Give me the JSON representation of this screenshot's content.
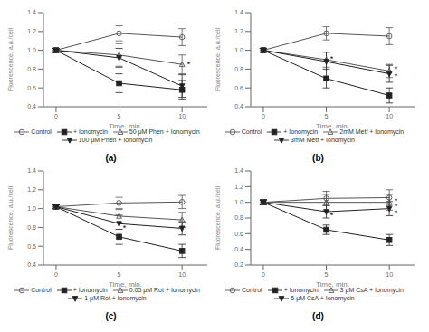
{
  "chart_data": [
    {
      "type": "line",
      "title": "(a)",
      "x_label": "Time, min.",
      "y_label": "Fluorescence, a.u./cell",
      "x": [
        0,
        5,
        10
      ],
      "xlim": [
        -1,
        12
      ],
      "xticks": [
        0,
        5,
        10
      ],
      "ylim": [
        0.4,
        1.4
      ],
      "yticks": [
        0.4,
        0.6,
        0.8,
        {
          "value": 1.0,
          "label": "1.0"
        },
        1.2,
        1.4
      ],
      "grid": false,
      "series": [
        {
          "name": "Control",
          "color": "#555555",
          "values": [
            1.0,
            1.18,
            1.14
          ],
          "yerr": [
            0.02,
            0.08,
            0.09
          ],
          "marker": "circle-open",
          "line_style": "solid"
        },
        {
          "name": "+ Ionomycin",
          "color": "#222222",
          "values": [
            1.0,
            0.65,
            0.58
          ],
          "yerr": [
            0.02,
            0.1,
            0.1
          ],
          "marker": "square",
          "line_style": "solid"
        },
        {
          "name": "50 μM Phen + Ionomycin",
          "color": "#555555",
          "values": [
            1.0,
            0.95,
            0.85
          ],
          "yerr": [
            0.02,
            0.12,
            0.1
          ],
          "marker": "triangle-up-open",
          "line_style": "solid"
        },
        {
          "name": "100 μM Phen + Ionomycin",
          "color": "#222222",
          "values": [
            1.0,
            0.92,
            0.62
          ],
          "yerr": [
            0.02,
            0.1,
            0.12
          ],
          "marker": "triangle-down",
          "line_style": "solid"
        }
      ],
      "annotations": [
        {
          "x": 10.4,
          "y": 0.85,
          "text": "*"
        }
      ]
    },
    {
      "type": "line",
      "title": "(b)",
      "x_label": "Time, min.",
      "y_label": "Fluorescence, a.u./cell",
      "x": [
        0,
        5,
        10
      ],
      "xlim": [
        -1,
        12
      ],
      "xticks": [
        0,
        5,
        10
      ],
      "ylim": [
        0.4,
        1.4
      ],
      "yticks": [
        0.4,
        0.6,
        0.8,
        {
          "value": 1.0,
          "label": "1.0"
        },
        1.2,
        1.4
      ],
      "grid": false,
      "series": [
        {
          "name": "Control",
          "color": "#555555",
          "values": [
            1.0,
            1.18,
            1.15
          ],
          "yerr": [
            0.02,
            0.07,
            0.09
          ],
          "marker": "circle-open",
          "line_style": "solid"
        },
        {
          "name": "+ Ionomycin",
          "color": "#222222",
          "values": [
            1.0,
            0.7,
            0.52
          ],
          "yerr": [
            0.02,
            0.1,
            0.08
          ],
          "marker": "square",
          "line_style": "solid"
        },
        {
          "name": "2mM Metf + Ionomycin",
          "color": "#555555",
          "values": [
            1.0,
            0.9,
            0.78
          ],
          "yerr": [
            0.02,
            0.08,
            0.07
          ],
          "marker": "triangle-up-open",
          "line_style": "solid"
        },
        {
          "name": "3mM Metf + Ionomycin",
          "color": "#222222",
          "values": [
            1.0,
            0.88,
            0.75
          ],
          "yerr": [
            0.02,
            0.1,
            0.09
          ],
          "marker": "triangle-down",
          "line_style": "solid"
        }
      ],
      "annotations": [
        {
          "x": 5.3,
          "y": 0.91,
          "text": "*"
        },
        {
          "x": 10.4,
          "y": 0.8,
          "text": "*"
        },
        {
          "x": 10.4,
          "y": 0.73,
          "text": "*"
        }
      ]
    },
    {
      "type": "line",
      "title": "(c)",
      "x_label": "Time, min.",
      "y_label": "Fluorescence, a.u./cell",
      "x": [
        0,
        5,
        10
      ],
      "xlim": [
        -1,
        12
      ],
      "xticks": [
        0,
        5,
        10
      ],
      "ylim": [
        0.4,
        1.4
      ],
      "yticks": [
        0.4,
        0.6,
        0.8,
        {
          "value": 1.0,
          "label": "1.0"
        },
        1.2,
        1.4
      ],
      "grid": false,
      "series": [
        {
          "name": "Control",
          "color": "#555555",
          "values": [
            1.02,
            1.06,
            1.07
          ],
          "yerr": [
            0.02,
            0.06,
            0.07
          ],
          "marker": "circle-open",
          "line_style": "solid"
        },
        {
          "name": "+ Ionomycin",
          "color": "#222222",
          "values": [
            1.02,
            0.7,
            0.55
          ],
          "yerr": [
            0.02,
            0.08,
            0.07
          ],
          "marker": "square",
          "line_style": "solid"
        },
        {
          "name": "0.05 μM Rot + Ionomycin",
          "color": "#555555",
          "values": [
            1.02,
            0.92,
            0.88
          ],
          "yerr": [
            0.02,
            0.07,
            0.08
          ],
          "marker": "triangle-up-open",
          "line_style": "solid"
        },
        {
          "name": "1 μM Rot + Ionomycin",
          "color": "#222222",
          "values": [
            1.02,
            0.84,
            0.79
          ],
          "yerr": [
            0.02,
            0.09,
            0.07
          ],
          "marker": "triangle-down",
          "line_style": "solid"
        }
      ],
      "annotations": [
        {
          "x": 5.3,
          "y": 0.79,
          "text": "*"
        }
      ]
    },
    {
      "type": "line",
      "title": "(d)",
      "x_label": "Time, min.",
      "y_label": "Fluorescence, a.u./cell",
      "x": [
        0,
        5,
        10
      ],
      "xlim": [
        -1,
        12
      ],
      "xticks": [
        0,
        5,
        10
      ],
      "ylim": [
        0.2,
        1.4
      ],
      "yticks": [
        0.2,
        0.4,
        0.6,
        0.8,
        {
          "value": 1.0,
          "label": "1.0"
        },
        1.2,
        1.4
      ],
      "grid": false,
      "series": [
        {
          "name": "Control",
          "color": "#555555",
          "values": [
            1.0,
            1.05,
            1.06
          ],
          "yerr": [
            0.03,
            0.09,
            0.1
          ],
          "marker": "circle-open",
          "line_style": "solid"
        },
        {
          "name": "+ Ionomycin",
          "color": "#222222",
          "values": [
            1.0,
            0.65,
            0.52
          ],
          "yerr": [
            0.03,
            0.06,
            0.07
          ],
          "marker": "square",
          "line_style": "solid"
        },
        {
          "name": "3 μM CsA + Ionomycin",
          "color": "#555555",
          "values": [
            1.0,
            1.0,
            1.0
          ],
          "yerr": [
            0.03,
            0.1,
            0.1
          ],
          "marker": "triangle-up-open",
          "line_style": "solid"
        },
        {
          "name": "5 μM CsA + Ionomycin",
          "color": "#222222",
          "values": [
            1.0,
            0.88,
            0.92
          ],
          "yerr": [
            0.03,
            0.08,
            0.09
          ],
          "marker": "triangle-down",
          "line_style": "solid"
        }
      ],
      "annotations": [
        {
          "x": 5.3,
          "y": 0.84,
          "text": "*"
        },
        {
          "x": 10.4,
          "y": 1.02,
          "text": "*"
        },
        {
          "x": 10.4,
          "y": 0.95,
          "text": "*"
        },
        {
          "x": 10.4,
          "y": 0.87,
          "text": "*"
        }
      ]
    }
  ]
}
